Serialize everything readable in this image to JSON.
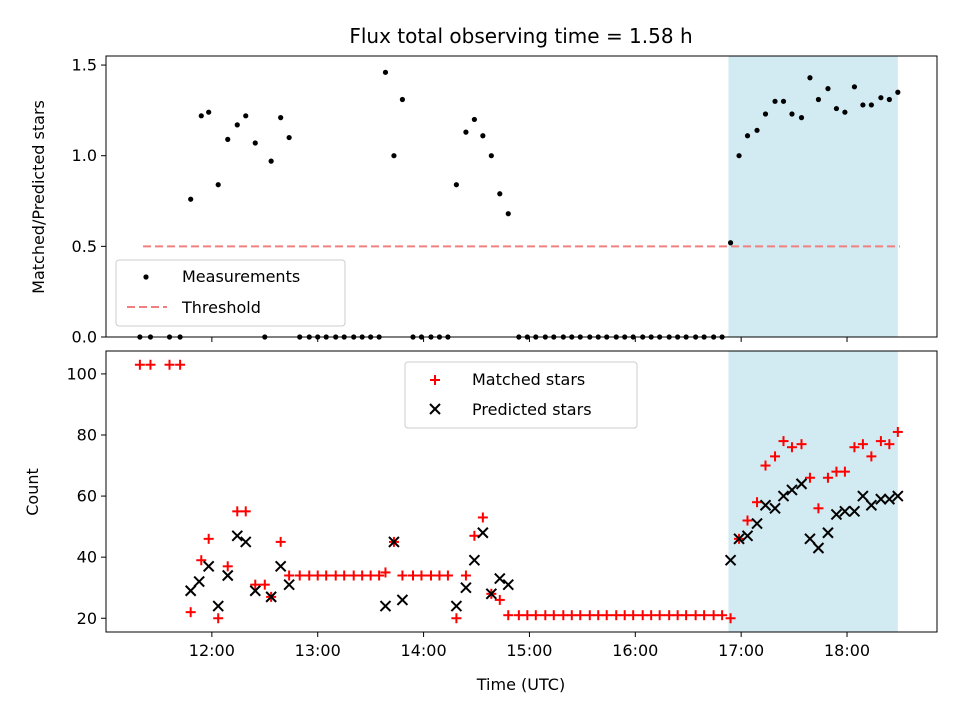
{
  "chart_data": {
    "title": "Flux total observing time = 1.58 h",
    "shaded_region": {
      "start": 16.88,
      "end": 18.48,
      "color": "#add8e6"
    },
    "x": {
      "label": "Time (UTC)",
      "range": [
        11.0,
        18.85
      ],
      "tick_values": [
        12,
        13,
        14,
        15,
        16,
        17,
        18
      ],
      "tick_labels": [
        "12:00",
        "13:00",
        "14:00",
        "15:00",
        "16:00",
        "17:00",
        "18:00"
      ]
    },
    "panels": [
      {
        "type": "scatter",
        "ylabel": "Matched/Predicted stars",
        "ylim": [
          0,
          1.55
        ],
        "ytick_values": [
          0,
          0.5,
          1.0,
          1.5
        ],
        "ytick_labels": [
          "0.0",
          "0.5",
          "1.0",
          "1.5"
        ],
        "threshold": {
          "value": 0.5,
          "x_start": 11.35,
          "x_end": 18.5,
          "color": "#f08080",
          "name": "Threshold"
        },
        "legend": {
          "position": "lower-left",
          "entries": [
            "Measurements",
            "Threshold"
          ]
        },
        "series": [
          {
            "name": "Measurements",
            "marker": "dot",
            "color": "#000000",
            "x": [
              11.32,
              11.42,
              11.6,
              11.7,
              11.8,
              11.9,
              11.97,
              12.06,
              12.15,
              12.24,
              12.32,
              12.41,
              12.5,
              12.56,
              12.65,
              12.73,
              12.83,
              12.92,
              13.0,
              13.08,
              13.17,
              13.25,
              13.34,
              13.42,
              13.5,
              13.58,
              13.64,
              13.72,
              13.8,
              13.9,
              13.98,
              14.07,
              14.15,
              14.23,
              14.31,
              14.4,
              14.48,
              14.56,
              14.64,
              14.72,
              14.8,
              14.9,
              14.98,
              15.06,
              15.15,
              15.23,
              15.32,
              15.4,
              15.48,
              15.57,
              15.65,
              15.73,
              15.82,
              15.9,
              15.98,
              16.07,
              16.15,
              16.23,
              16.32,
              16.4,
              16.48,
              16.57,
              16.65,
              16.74,
              16.82,
              16.9,
              16.98,
              17.06,
              17.15,
              17.23,
              17.32,
              17.4,
              17.48,
              17.57,
              17.65,
              17.73,
              17.82,
              17.9,
              17.98,
              18.07,
              18.15,
              18.23,
              18.32,
              18.4,
              18.48
            ],
            "y": [
              0,
              0,
              0,
              0,
              0.76,
              1.22,
              1.24,
              0.84,
              1.09,
              1.17,
              1.22,
              1.07,
              0,
              0.97,
              1.21,
              1.1,
              0,
              0,
              0,
              0,
              0,
              0,
              0,
              0,
              0,
              0,
              1.46,
              1.0,
              1.31,
              0,
              0,
              0,
              0,
              0,
              0.84,
              1.13,
              1.2,
              1.11,
              1.0,
              0.79,
              0.68,
              0,
              0,
              0,
              0,
              0,
              0,
              0,
              0,
              0,
              0,
              0,
              0,
              0,
              0,
              0,
              0,
              0,
              0,
              0,
              0,
              0,
              0,
              0,
              0,
              0.52,
              1.0,
              1.11,
              1.14,
              1.23,
              1.3,
              1.3,
              1.23,
              1.21,
              1.43,
              1.31,
              1.37,
              1.26,
              1.24,
              1.38,
              1.28,
              1.28,
              1.32,
              1.31,
              1.35
            ]
          }
        ]
      },
      {
        "type": "scatter",
        "ylabel": "Count",
        "ylim": [
          15.5,
          107.5
        ],
        "ytick_values": [
          20,
          40,
          60,
          80,
          100
        ],
        "ytick_labels": [
          "20",
          "40",
          "60",
          "80",
          "100"
        ],
        "legend": {
          "position": "upper-center",
          "entries": [
            "Matched stars",
            "Predicted stars"
          ]
        },
        "series": [
          {
            "name": "Matched stars",
            "marker": "plus",
            "color": "#ff0000",
            "x": [
              11.32,
              11.42,
              11.6,
              11.7,
              11.8,
              11.9,
              11.97,
              12.06,
              12.15,
              12.24,
              12.32,
              12.41,
              12.5,
              12.56,
              12.65,
              12.73,
              12.83,
              12.92,
              13.0,
              13.08,
              13.17,
              13.25,
              13.34,
              13.42,
              13.5,
              13.58,
              13.64,
              13.72,
              13.8,
              13.9,
              13.98,
              14.07,
              14.15,
              14.23,
              14.31,
              14.4,
              14.48,
              14.56,
              14.64,
              14.72,
              14.8,
              14.9,
              14.98,
              15.06,
              15.15,
              15.23,
              15.32,
              15.4,
              15.48,
              15.57,
              15.65,
              15.73,
              15.82,
              15.9,
              15.98,
              16.07,
              16.15,
              16.23,
              16.32,
              16.4,
              16.48,
              16.57,
              16.65,
              16.74,
              16.82,
              16.9,
              16.98,
              17.06,
              17.15,
              17.23,
              17.32,
              17.4,
              17.48,
              17.57,
              17.65,
              17.73,
              17.82,
              17.9,
              17.98,
              18.07,
              18.15,
              18.23,
              18.32,
              18.4,
              18.48
            ],
            "y": [
              103,
              103,
              103,
              103,
              22,
              39,
              46,
              20,
              37,
              55,
              55,
              31,
              31,
              27,
              45,
              34,
              34,
              34,
              34,
              34,
              34,
              34,
              34,
              34,
              34,
              34,
              35,
              45,
              34,
              34,
              34,
              34,
              34,
              34,
              20,
              34,
              47,
              53,
              28,
              26,
              21,
              21,
              21,
              21,
              21,
              21,
              21,
              21,
              21,
              21,
              21,
              21,
              21,
              21,
              21,
              21,
              21,
              21,
              21,
              21,
              21,
              21,
              21,
              21,
              21,
              20,
              46,
              52,
              58,
              70,
              73,
              78,
              76,
              77,
              66,
              56,
              66,
              68,
              68,
              76,
              77,
              73,
              78,
              77,
              81
            ]
          },
          {
            "name": "Predicted stars",
            "marker": "x",
            "color": "#000000",
            "x": [
              11.8,
              11.88,
              11.97,
              12.06,
              12.15,
              12.24,
              12.32,
              12.41,
              12.56,
              12.65,
              12.73,
              13.64,
              13.72,
              13.8,
              14.31,
              14.4,
              14.48,
              14.56,
              14.64,
              14.72,
              14.8,
              16.9,
              16.98,
              17.06,
              17.15,
              17.23,
              17.32,
              17.4,
              17.48,
              17.57,
              17.65,
              17.73,
              17.82,
              17.9,
              17.98,
              18.07,
              18.15,
              18.23,
              18.32,
              18.4,
              18.48
            ],
            "y": [
              29,
              32,
              37,
              24,
              34,
              47,
              45,
              29,
              27,
              37,
              31,
              24,
              45,
              26,
              24,
              30,
              39,
              48,
              28,
              33,
              31,
              39,
              46,
              47,
              51,
              57,
              56,
              60,
              62,
              64,
              46,
              43,
              48,
              54,
              55,
              55,
              60,
              57,
              59,
              59,
              60
            ]
          }
        ]
      }
    ]
  }
}
